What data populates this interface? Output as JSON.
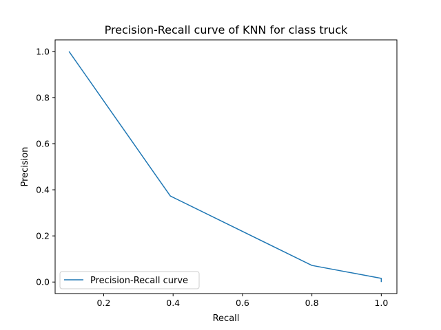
{
  "chart_data": {
    "type": "line",
    "title": "Precision-Recall curve of KNN for class truck",
    "xlabel": "Recall",
    "ylabel": "Precision",
    "xlim": [
      0.06,
      1.045
    ],
    "ylim": [
      -0.05,
      1.05
    ],
    "xticks": [
      0.2,
      0.4,
      0.6,
      0.8,
      1.0
    ],
    "xtick_labels": [
      "0.2",
      "0.4",
      "0.6",
      "0.8",
      "1.0"
    ],
    "yticks": [
      0.0,
      0.2,
      0.4,
      0.6,
      0.8,
      1.0
    ],
    "ytick_labels": [
      "0.0",
      "0.2",
      "0.4",
      "0.6",
      "0.8",
      "1.0"
    ],
    "grid": false,
    "legend_position": "lower-left",
    "series": [
      {
        "name": "Precision-Recall curve",
        "color": "#1f77b4",
        "x": [
          0.1,
          0.392,
          0.8,
          1.0,
          1.0
        ],
        "y": [
          1.0,
          0.373,
          0.072,
          0.016,
          0.0
        ]
      }
    ]
  }
}
